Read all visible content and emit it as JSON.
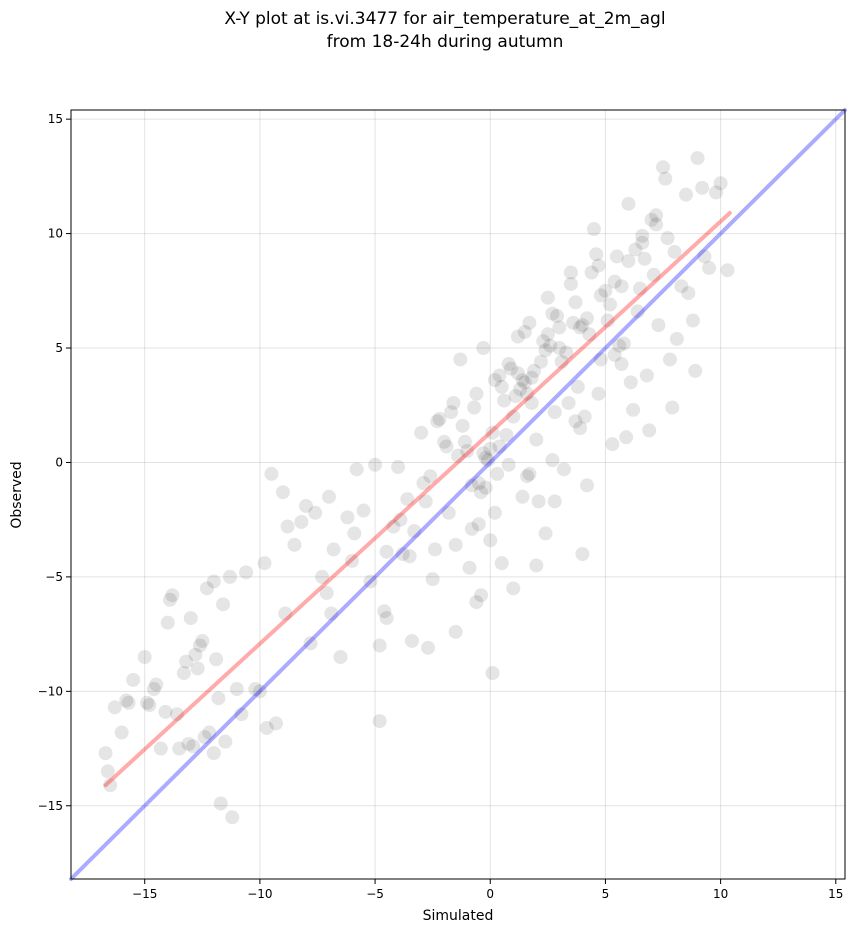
{
  "chart_data": {
    "type": "scatter",
    "title_line1": "X-Y plot at is.vi.3477 for air_temperature_at_2m_agl",
    "title_line2": "from 18-24h during autumn",
    "xlabel": "Simulated",
    "ylabel": "Observed",
    "xlim": [
      -18.2,
      15.4
    ],
    "ylim": [
      -18.2,
      15.4
    ],
    "xticks": [
      -15,
      -10,
      -5,
      0,
      5,
      10,
      15
    ],
    "yticks": [
      -15,
      -10,
      -5,
      0,
      5,
      10,
      15
    ],
    "xtick_labels": [
      "−15",
      "−10",
      "−5",
      "0",
      "5",
      "10",
      "15"
    ],
    "ytick_labels": [
      "−15",
      "−10",
      "−5",
      "0",
      "5",
      "10",
      "15"
    ],
    "grid": true,
    "point_color": "#000000",
    "point_alpha": 0.1,
    "fit_line": {
      "color": "#ff0000",
      "x": [
        -16.7,
        10.4
      ],
      "y": [
        -14.1,
        10.9
      ]
    },
    "identity_line": {
      "color": "#0000ff",
      "x": [
        -18.2,
        15.4
      ],
      "y": [
        -18.2,
        15.4
      ]
    },
    "series": [
      {
        "x": [
          -16.7,
          -16.5,
          -16.3,
          -16.0,
          -15.7,
          -15.5,
          -15.0,
          -14.9,
          -14.6,
          -14.3,
          -14.0,
          -13.9,
          -13.8,
          -13.6,
          -13.3,
          -13.1,
          -13.0,
          -12.8,
          -12.7,
          -12.5,
          -12.3,
          -12.2,
          -12.0,
          -11.9,
          -11.8,
          -11.6,
          -11.3,
          -11.0,
          -10.6,
          -10.0,
          -9.8,
          -9.5,
          -9.0,
          -8.8,
          -8.5,
          -8.2,
          -8.0,
          -7.6,
          -7.3,
          -7.0,
          -6.8,
          -6.5,
          -6.2,
          -6.0,
          -5.8,
          -5.5,
          -5.2,
          -5.0,
          -4.8,
          -4.6,
          -14.5,
          -14.8,
          -13.5,
          -12.0,
          -11.5,
          -10.2,
          -11.2,
          -16.6,
          -15.8,
          -12.6,
          -9.3,
          -7.8,
          -6.9,
          -8.9,
          -10.8,
          -12.9,
          -14.1,
          -13.2,
          -9.7,
          -7.1,
          -5.9,
          -4.8,
          -4.5,
          -11.7,
          -12.4
        ],
        "y": [
          -12.7,
          -14.1,
          -10.7,
          -11.8,
          -10.5,
          -9.5,
          -8.5,
          -10.5,
          -9.9,
          -12.5,
          -7.0,
          -6.0,
          -5.8,
          -11.0,
          -9.2,
          -12.3,
          -6.8,
          -8.4,
          -9.0,
          -7.8,
          -5.5,
          -11.8,
          -5.2,
          -8.6,
          -10.3,
          -6.2,
          -5.0,
          -9.9,
          -4.8,
          -10.0,
          -4.4,
          -0.5,
          -1.3,
          -2.8,
          -3.6,
          -2.6,
          -1.9,
          -2.2,
          -5.0,
          -1.5,
          -3.8,
          -8.5,
          -2.4,
          -4.3,
          -0.3,
          -2.1,
          -5.2,
          -0.1,
          -11.3,
          -6.5,
          -9.7,
          -10.6,
          -12.5,
          -12.7,
          -12.2,
          -9.9,
          -15.5,
          -13.5,
          -10.4,
          -8.0,
          -11.4,
          -7.9,
          -6.6,
          -6.6,
          -11.0,
          -12.4,
          -10.9,
          -8.7,
          -11.6,
          -5.7,
          -3.1,
          -8.0,
          -6.8,
          -14.9,
          -12.0
        ]
      },
      {
        "x": [
          -4.5,
          -4.2,
          -4.0,
          -3.8,
          -3.6,
          -3.5,
          -3.3,
          -3.0,
          -2.8,
          -2.6,
          -2.5,
          -2.3,
          -2.0,
          -1.8,
          -1.6,
          -1.5,
          -1.3,
          -1.0,
          -0.8,
          -0.6,
          -0.5,
          -0.3,
          0.0,
          0.2,
          0.3,
          0.5,
          0.8,
          1.0,
          1.2,
          1.4,
          1.5,
          1.7,
          2.0,
          2.2,
          2.4,
          2.5,
          2.8,
          3.0,
          3.2,
          3.5,
          3.8,
          4.0,
          4.2,
          4.5,
          4.8,
          5.0,
          5.3,
          5.5,
          5.8,
          6.0,
          6.2,
          6.5,
          6.8,
          7.0,
          7.3,
          7.5,
          7.8,
          8.0,
          8.3,
          8.5,
          8.8,
          9.0,
          9.3,
          9.5,
          9.8,
          10.0,
          10.3,
          -3.9,
          -2.9,
          -1.9,
          -0.9,
          0.1,
          1.1,
          2.1,
          3.1,
          4.1,
          5.1,
          6.1,
          7.1,
          8.1,
          -1.2,
          -0.7,
          -0.2,
          0.4,
          0.9,
          1.3,
          1.6,
          1.9,
          2.3,
          2.7,
          3.3,
          3.7,
          4.3,
          4.7,
          5.2,
          5.7,
          6.3,
          6.7,
          7.2,
          7.7,
          -2.2,
          -1.4,
          -0.4,
          0.6,
          1.4,
          2.6,
          3.4,
          4.4,
          5.4,
          6.4,
          -0.1,
          0.7,
          1.8,
          2.9,
          3.9,
          -1.7,
          -0.5,
          0.5,
          1.5,
          2.5,
          3.5,
          4.6,
          5.6,
          6.6,
          7.6,
          8.6,
          9.2,
          -2.4,
          -0.8,
          1.0,
          2.0,
          0.0,
          -1.1,
          -0.3,
          0.4,
          1.2,
          1.8,
          2.4,
          3.0,
          3.6,
          4.2,
          4.8,
          5.4,
          6.0,
          6.6,
          7.2,
          0.2,
          -0.6,
          1.6,
          2.8,
          4.0,
          0.1,
          -0.4,
          -1.5,
          -2.7,
          -3.4,
          3.9,
          5.9,
          6.9,
          7.9,
          8.9,
          -0.2,
          0.8,
          1.7,
          2.7,
          3.7,
          4.7,
          5.7
        ],
        "y": [
          -3.9,
          -2.8,
          -0.2,
          -4.0,
          -1.6,
          -4.1,
          -3.0,
          1.3,
          -1.7,
          -0.6,
          -5.1,
          1.8,
          0.9,
          -2.2,
          2.6,
          -3.6,
          4.5,
          0.5,
          -1.0,
          3.0,
          -2.7,
          5.0,
          0.6,
          3.6,
          -0.5,
          -4.4,
          4.3,
          2.0,
          5.5,
          -1.5,
          3.5,
          6.1,
          1.0,
          4.4,
          -3.1,
          7.2,
          2.2,
          5.9,
          -0.3,
          8.3,
          3.3,
          6.0,
          -1.0,
          10.2,
          4.5,
          7.5,
          0.8,
          9.0,
          5.2,
          11.3,
          2.3,
          7.6,
          3.8,
          10.6,
          6.0,
          12.9,
          4.5,
          9.2,
          7.7,
          11.7,
          6.2,
          13.3,
          9.0,
          8.5,
          11.8,
          12.2,
          8.4,
          -2.5,
          -0.9,
          0.7,
          -4.6,
          1.3,
          2.9,
          -1.7,
          4.4,
          2.0,
          6.2,
          3.5,
          8.2,
          5.4,
          1.6,
          2.4,
          0.2,
          3.8,
          4.1,
          3.2,
          3.0,
          4.0,
          5.3,
          6.5,
          4.8,
          7.0,
          5.6,
          8.6,
          6.9,
          7.7,
          9.3,
          8.9,
          10.4,
          9.8,
          1.9,
          0.3,
          -1.3,
          2.7,
          3.6,
          5.1,
          2.6,
          8.3,
          4.7,
          6.6,
          0.1,
          1.2,
          2.6,
          6.4,
          5.9,
          2.2,
          -0.9,
          3.3,
          5.7,
          5.6,
          7.8,
          9.1,
          5.1,
          9.6,
          12.4,
          7.4,
          12.0,
          -3.8,
          -2.9,
          -5.5,
          -4.5,
          -3.4,
          0.9,
          0.4,
          0.7,
          3.9,
          3.7,
          4.9,
          5.0,
          6.1,
          6.3,
          7.3,
          7.9,
          8.8,
          9.9,
          10.8,
          -2.2,
          -6.1,
          -0.6,
          -1.7,
          -4.0,
          -9.2,
          -5.8,
          -7.4,
          -8.1,
          -7.8,
          1.5,
          1.1,
          1.4,
          2.4,
          4.0,
          -1.1,
          -0.1,
          -0.5,
          0.1,
          1.8,
          3.0,
          4.3
        ]
      }
    ]
  }
}
